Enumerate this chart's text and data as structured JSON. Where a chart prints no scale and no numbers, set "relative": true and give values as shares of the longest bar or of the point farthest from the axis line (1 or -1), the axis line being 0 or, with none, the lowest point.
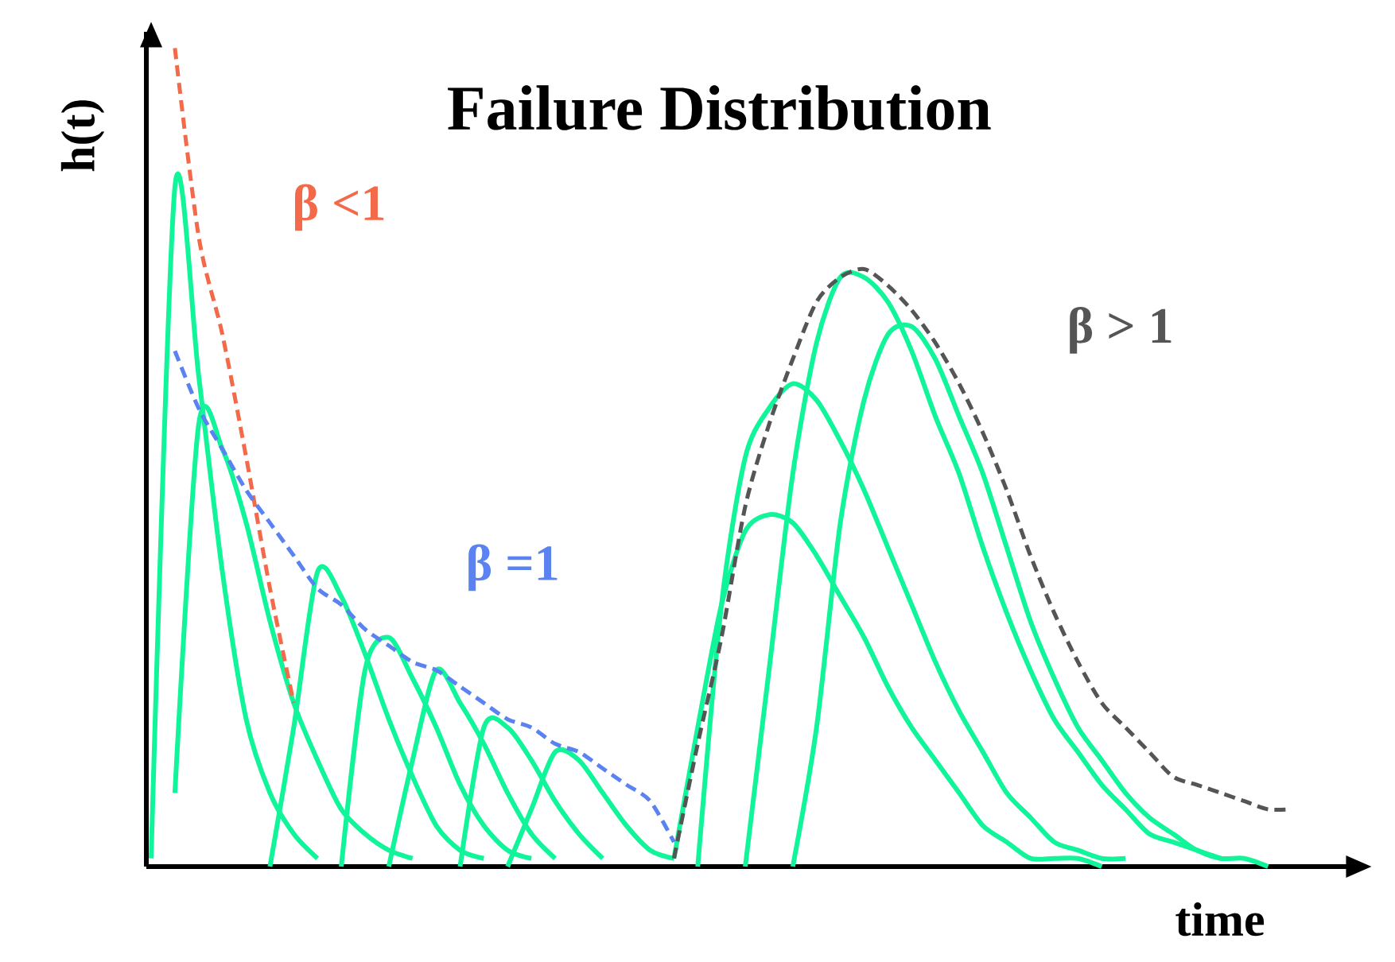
{
  "chart_data": {
    "type": "line",
    "title": "**Failure Distribution**",
    "xlabel": "**time**",
    "ylabel": "**h(t)**",
    "relative": true,
    "categories": [
      null,
      null,
      null,
      null,
      null,
      null,
      null,
      null,
      null,
      null,
      null,
      null,
      null,
      null,
      null,
      null,
      null,
      null,
      null,
      null,
      null,
      null,
      null,
      null,
      null,
      null,
      null,
      null,
      null,
      null,
      null,
      null,
      null,
      null,
      null,
      null,
      null,
      null,
      null,
      null,
      null,
      null,
      null,
      null,
      null,
      null,
      null,
      null,
      null
    ],
    "series": [
      {
        "color": "#11f59a",
        "values": [
          0.01,
          0.83,
          0.6,
          0.36,
          0.18,
          0.09,
          0.04,
          0.01,
          null,
          null,
          null,
          null,
          null,
          null,
          null,
          null,
          null,
          null,
          null,
          null,
          null,
          null,
          null,
          null,
          null,
          null,
          null,
          null,
          null,
          null,
          null,
          null,
          null,
          null,
          null,
          null,
          null,
          null,
          null,
          null,
          null,
          null,
          null,
          null,
          null,
          null,
          null,
          null,
          null
        ]
      },
      {
        "color": "#11f59a",
        "values": [
          null,
          0.09,
          0.54,
          0.51,
          0.42,
          0.3,
          0.2,
          0.13,
          0.07,
          0.04,
          0.02,
          0.01,
          null,
          null,
          null,
          null,
          null,
          null,
          null,
          null,
          null,
          null,
          null,
          null,
          null,
          null,
          null,
          null,
          null,
          null,
          null,
          null,
          null,
          null,
          null,
          null,
          null,
          null,
          null,
          null,
          null,
          null,
          null,
          null,
          null,
          null,
          null,
          null,
          null
        ]
      },
      {
        "color": "#11f59a",
        "values": [
          null,
          null,
          null,
          null,
          null,
          0,
          0.17,
          0.36,
          0.33,
          0.26,
          0.18,
          0.11,
          0.05,
          0.02,
          0.01,
          null,
          null,
          null,
          null,
          null,
          null,
          null,
          null,
          null,
          null,
          null,
          null,
          null,
          null,
          null,
          null,
          null,
          null,
          null,
          null,
          null,
          null,
          null,
          null,
          null,
          null,
          null,
          null,
          null,
          null,
          null,
          null,
          null,
          null
        ]
      },
      {
        "color": "#11f59a",
        "values": [
          null,
          null,
          null,
          null,
          null,
          null,
          null,
          null,
          0,
          0.24,
          0.28,
          0.23,
          0.17,
          0.1,
          0.05,
          0.02,
          0.01,
          null,
          null,
          null,
          null,
          null,
          null,
          null,
          null,
          null,
          null,
          null,
          null,
          null,
          null,
          null,
          null,
          null,
          null,
          null,
          null,
          null,
          null,
          null,
          null,
          null,
          null,
          null,
          null,
          null,
          null,
          null,
          null
        ]
      },
      {
        "color": "#11f59a",
        "values": [
          null,
          null,
          null,
          null,
          null,
          null,
          null,
          null,
          null,
          null,
          0,
          0.13,
          0.24,
          0.2,
          0.15,
          0.09,
          0.04,
          0.01,
          null,
          null,
          null,
          null,
          null,
          null,
          null,
          null,
          null,
          null,
          null,
          null,
          null,
          null,
          null,
          null,
          null,
          null,
          null,
          null,
          null,
          null,
          null,
          null,
          null,
          null,
          null,
          null,
          null,
          null,
          null
        ]
      },
      {
        "color": "#11f59a",
        "values": [
          null,
          null,
          null,
          null,
          null,
          null,
          null,
          null,
          null,
          null,
          null,
          null,
          null,
          0,
          0.17,
          0.17,
          0.13,
          0.08,
          0.04,
          0.01,
          null,
          null,
          null,
          null,
          null,
          null,
          null,
          null,
          null,
          null,
          null,
          null,
          null,
          null,
          null,
          null,
          null,
          null,
          null,
          null,
          null,
          null,
          null,
          null,
          null,
          null,
          null,
          null,
          null
        ]
      },
      {
        "color": "#11f59a",
        "values": [
          null,
          null,
          null,
          null,
          null,
          null,
          null,
          null,
          null,
          null,
          null,
          null,
          null,
          null,
          null,
          0,
          0.07,
          0.14,
          0.13,
          0.09,
          0.05,
          0.02,
          0.01,
          null,
          null,
          null,
          null,
          null,
          null,
          null,
          null,
          null,
          null,
          null,
          null,
          null,
          null,
          null,
          null,
          null,
          null,
          null,
          null,
          null,
          null,
          null,
          null,
          null,
          null
        ]
      },
      {
        "color": "#11f59a",
        "values": [
          null,
          null,
          null,
          null,
          null,
          null,
          null,
          null,
          null,
          null,
          null,
          null,
          null,
          null,
          null,
          null,
          null,
          null,
          null,
          null,
          null,
          null,
          0.01,
          0.17,
          0.32,
          0.41,
          0.43,
          0.42,
          0.38,
          0.33,
          0.28,
          0.22,
          0.17,
          0.13,
          0.09,
          0.05,
          0.03,
          0.01,
          0.01,
          0.01,
          0,
          null,
          null,
          null,
          null,
          null,
          null,
          null,
          null
        ]
      },
      {
        "color": "#11f59a",
        "values": [
          null,
          null,
          null,
          null,
          null,
          null,
          null,
          null,
          null,
          null,
          null,
          null,
          null,
          null,
          null,
          null,
          null,
          null,
          null,
          null,
          null,
          null,
          null,
          0,
          0.32,
          0.5,
          0.56,
          0.59,
          0.57,
          0.52,
          0.46,
          0.39,
          0.32,
          0.25,
          0.19,
          0.14,
          0.09,
          0.06,
          0.03,
          0.02,
          0.01,
          0.01,
          null,
          null,
          null,
          null,
          null,
          null,
          null
        ]
      },
      {
        "color": "#11f59a",
        "values": [
          null,
          null,
          null,
          null,
          null,
          null,
          null,
          null,
          null,
          null,
          null,
          null,
          null,
          null,
          null,
          null,
          null,
          null,
          null,
          null,
          null,
          null,
          null,
          null,
          null,
          0,
          0.24,
          0.48,
          0.64,
          0.72,
          0.72,
          0.69,
          0.63,
          0.55,
          0.48,
          0.39,
          0.31,
          0.24,
          0.18,
          0.14,
          0.1,
          0.07,
          0.04,
          0.03,
          0.02,
          0.01,
          null,
          null,
          null
        ]
      },
      {
        "color": "#11f59a",
        "values": [
          null,
          null,
          null,
          null,
          null,
          null,
          null,
          null,
          null,
          null,
          null,
          null,
          null,
          null,
          null,
          null,
          null,
          null,
          null,
          null,
          null,
          null,
          null,
          null,
          null,
          null,
          null,
          0,
          0.17,
          0.42,
          0.57,
          0.65,
          0.66,
          0.62,
          0.55,
          0.48,
          0.39,
          0.3,
          0.23,
          0.17,
          0.13,
          0.09,
          0.06,
          0.04,
          0.02,
          0.01,
          0.01,
          0,
          null
        ]
      },
      {
        "name": "**β <1**",
        "color": "#f26a4a",
        "line_style": "dashed",
        "values": [
          null,
          1.0,
          0.77,
          0.65,
          0.5,
          0.34,
          0.2,
          null,
          null,
          null,
          null,
          null,
          null,
          null,
          null,
          null,
          null,
          null,
          null,
          null,
          null,
          null,
          null,
          null,
          null,
          null,
          null,
          null,
          null,
          null,
          null,
          null,
          null,
          null,
          null,
          null,
          null,
          null,
          null,
          null,
          null,
          null,
          null,
          null,
          null,
          null,
          null,
          null,
          null
        ]
      },
      {
        "name": "**β =1**",
        "color": "#5a82f0",
        "line_style": "dashed",
        "values": [
          null,
          0.63,
          0.56,
          0.51,
          0.46,
          0.42,
          0.38,
          0.34,
          0.32,
          0.29,
          0.27,
          0.25,
          0.24,
          0.22,
          0.2,
          0.18,
          0.17,
          0.15,
          0.14,
          0.12,
          0.1,
          0.08,
          0.03,
          null,
          null,
          null,
          null,
          null,
          null,
          null,
          null,
          null,
          null,
          null,
          null,
          null,
          null,
          null,
          null,
          null,
          null,
          null,
          null,
          null,
          null,
          null,
          null,
          null,
          null
        ]
      },
      {
        "name": "**β > 1**",
        "color": "#555555",
        "line_style": "dashed",
        "values": [
          null,
          null,
          null,
          null,
          null,
          null,
          null,
          null,
          null,
          null,
          null,
          null,
          null,
          null,
          null,
          null,
          null,
          null,
          null,
          null,
          null,
          null,
          0.01,
          0.15,
          0.28,
          0.44,
          0.54,
          0.62,
          0.69,
          0.72,
          0.73,
          0.71,
          0.68,
          0.64,
          0.59,
          0.53,
          0.46,
          0.38,
          0.31,
          0.25,
          0.2,
          0.17,
          0.14,
          0.11,
          0.1,
          0.09,
          0.08,
          0.07,
          0.07
        ]
      }
    ]
  }
}
